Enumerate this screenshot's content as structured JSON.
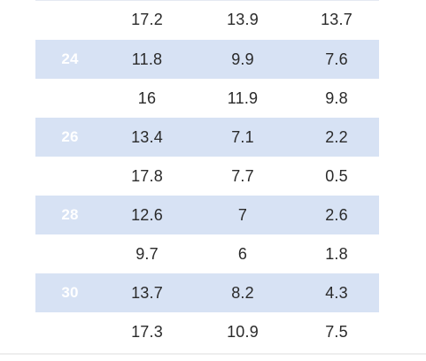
{
  "table": {
    "rows": [
      {
        "label": "",
        "v1": "17.2",
        "v2": "13.9",
        "v3": "13.7",
        "shaded": false
      },
      {
        "label": "24",
        "v1": "11.8",
        "v2": "9.9",
        "v3": "7.6",
        "shaded": true
      },
      {
        "label": "",
        "v1": "16",
        "v2": "11.9",
        "v3": "9.8",
        "shaded": false
      },
      {
        "label": "26",
        "v1": "13.4",
        "v2": "7.1",
        "v3": "2.2",
        "shaded": true
      },
      {
        "label": "",
        "v1": "17.8",
        "v2": "7.7",
        "v3": "0.5",
        "shaded": false
      },
      {
        "label": "28",
        "v1": "12.6",
        "v2": "7",
        "v3": "2.6",
        "shaded": true
      },
      {
        "label": "",
        "v1": "9.7",
        "v2": "6",
        "v3": "1.8",
        "shaded": false
      },
      {
        "label": "30",
        "v1": "13.7",
        "v2": "8.2",
        "v3": "4.3",
        "shaded": true
      },
      {
        "label": "",
        "v1": "17.3",
        "v2": "10.9",
        "v3": "7.5",
        "shaded": false
      }
    ]
  }
}
